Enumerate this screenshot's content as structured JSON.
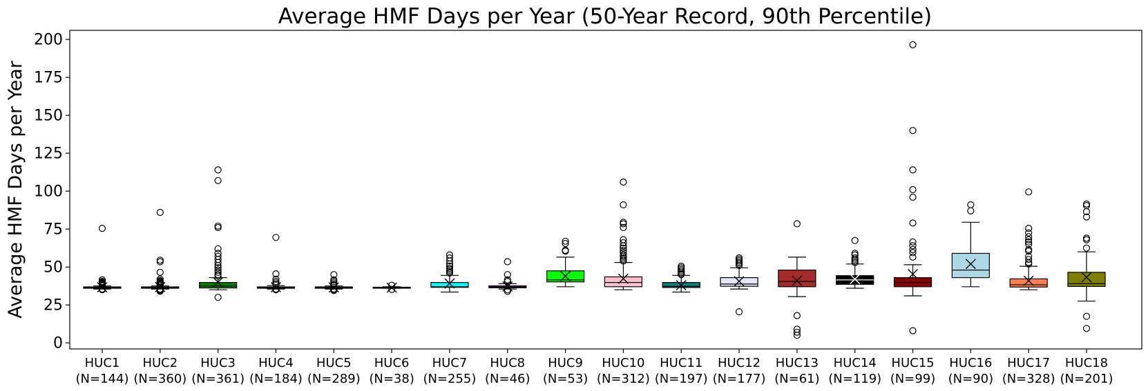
{
  "chart_data": {
    "type": "box",
    "title": "Average HMF Days per Year (50-Year Record, 90th Percentile)",
    "xlabel": "",
    "ylabel": "Average HMF Days per Year",
    "ylim": [
      -4,
      206
    ],
    "yticks": [
      0,
      25,
      50,
      75,
      100,
      125,
      150,
      175,
      200
    ],
    "grid": false,
    "categories": [
      {
        "name": "HUC1",
        "n_label": "(N=144)",
        "color": "#ffffff",
        "whislo": 35.5,
        "q1": 36.0,
        "med": 36.4,
        "q3": 36.9,
        "whishi": 37.5,
        "mean": 36.6,
        "fliers": [
          75.5,
          41.5,
          40.5,
          40,
          39.5,
          39,
          38.5,
          38,
          35.5,
          35
        ]
      },
      {
        "name": "HUC2",
        "n_label": "(N=360)",
        "color": "#ffffff",
        "whislo": 35.5,
        "q1": 36.0,
        "med": 36.4,
        "q3": 36.9,
        "whishi": 37.5,
        "mean": 36.8,
        "fliers": [
          86,
          54.5,
          53.5,
          46.5,
          42,
          41,
          40.5,
          40,
          39.5,
          39,
          38.5,
          38,
          35.5,
          35,
          34.5,
          34
        ]
      },
      {
        "name": "HUC3",
        "n_label": "(N=361)",
        "color": "#008000",
        "whislo": 35.0,
        "q1": 36.2,
        "med": 37.5,
        "q3": 39.8,
        "whishi": 43.0,
        "mean": 40.0,
        "fliers": [
          114,
          107,
          77,
          76,
          62,
          59,
          57,
          55,
          53,
          51,
          49.5,
          48,
          46.5,
          45,
          44,
          30
        ]
      },
      {
        "name": "HUC4",
        "n_label": "(N=184)",
        "color": "#ffffff",
        "whislo": 35.5,
        "q1": 36.0,
        "med": 36.4,
        "q3": 36.9,
        "whishi": 37.8,
        "mean": 36.7,
        "fliers": [
          69.5,
          45.5,
          42,
          40.5,
          39.5,
          38.5,
          35.5,
          35
        ]
      },
      {
        "name": "HUC5",
        "n_label": "(N=289)",
        "color": "#ffffff",
        "whislo": 35.5,
        "q1": 36.0,
        "med": 36.4,
        "q3": 36.9,
        "whishi": 37.5,
        "mean": 36.5,
        "fliers": [
          45,
          41.5,
          40.5,
          39.5,
          38.5,
          38,
          35.5,
          35,
          34.5
        ]
      },
      {
        "name": "HUC6",
        "n_label": "(N=38)",
        "color": "#ffffff",
        "whislo": 36.0,
        "q1": 36.2,
        "med": 36.4,
        "q3": 36.7,
        "whishi": 37.0,
        "mean": 36.4,
        "fliers": [
          38,
          35.2
        ]
      },
      {
        "name": "HUC7",
        "n_label": "(N=255)",
        "color": "#00ffff",
        "whislo": 33.5,
        "q1": 36.6,
        "med": 37.0,
        "q3": 39.8,
        "whishi": 44.5,
        "mean": 39.2,
        "fliers": [
          58,
          56,
          54,
          52,
          50.5,
          49,
          48,
          47,
          46
        ]
      },
      {
        "name": "HUC8",
        "n_label": "(N=46)",
        "color": "#800080",
        "whislo": 35.5,
        "q1": 36.3,
        "med": 36.8,
        "q3": 37.6,
        "whishi": 39.0,
        "mean": 37.2,
        "fliers": [
          53.5,
          45,
          41.5,
          40.5,
          35,
          34
        ]
      },
      {
        "name": "HUC9",
        "n_label": "(N=53)",
        "color": "#00ff00",
        "whislo": 37.0,
        "q1": 40.2,
        "med": 41.5,
        "q3": 47.5,
        "whishi": 56.5,
        "mean": 44.0,
        "fliers": [
          67,
          65.5,
          61,
          60.5
        ]
      },
      {
        "name": "HUC10",
        "n_label": "(N=312)",
        "color": "#ffc0cb",
        "whislo": 35.0,
        "q1": 37.0,
        "med": 39.8,
        "q3": 43.5,
        "whishi": 53.0,
        "mean": 42.3,
        "fliers": [
          106,
          91,
          79.5,
          78.5,
          76,
          68,
          66,
          64,
          62.5,
          61,
          59.5,
          58,
          57,
          56,
          55,
          54
        ]
      },
      {
        "name": "HUC11",
        "n_label": "(N=197)",
        "color": "#008080",
        "whislo": 33.5,
        "q1": 36.5,
        "med": 37.2,
        "q3": 39.8,
        "whishi": 44.5,
        "mean": 38.0,
        "fliers": [
          50.5,
          49.5,
          48.5,
          47.5,
          46.5,
          45.5,
          45
        ]
      },
      {
        "name": "HUC12",
        "n_label": "(N=177)",
        "color": "#e6e6fa",
        "whislo": 35.5,
        "q1": 37.3,
        "med": 38.8,
        "q3": 43.0,
        "whishi": 49.5,
        "mean": 40.6,
        "fliers": [
          56,
          55,
          54,
          53,
          52,
          51,
          20.5
        ]
      },
      {
        "name": "HUC13",
        "n_label": "(N=61)",
        "color": "#a52a2a",
        "whislo": 30.5,
        "q1": 37.0,
        "med": 40.5,
        "q3": 48.0,
        "whishi": 56.5,
        "mean": 41.0,
        "fliers": [
          78.5,
          18,
          9,
          7,
          5
        ]
      },
      {
        "name": "HUC14",
        "n_label": "(N=119)",
        "color": "#000000",
        "whislo": 36.0,
        "q1": 38.6,
        "med": 41.5,
        "q3": 44.3,
        "whishi": 52.0,
        "mean": 42.0,
        "fliers": [
          67.5,
          59,
          58,
          56,
          55,
          54,
          53
        ]
      },
      {
        "name": "HUC15",
        "n_label": "(N=99)",
        "color": "#8b0000",
        "whislo": 31.0,
        "q1": 37.0,
        "med": 39.8,
        "q3": 43.0,
        "whishi": 51.5,
        "mean": 45.3,
        "fliers": [
          196.5,
          140,
          114,
          101,
          96,
          79,
          66.5,
          64,
          61.5,
          59.5,
          56.5,
          8
        ]
      },
      {
        "name": "HUC16",
        "n_label": "(N=90)",
        "color": "#add8e6",
        "whislo": 37.0,
        "q1": 43.0,
        "med": 48.0,
        "q3": 59.0,
        "whishi": 79.5,
        "mean": 52.0,
        "fliers": [
          91,
          87
        ]
      },
      {
        "name": "HUC17",
        "n_label": "(N=328)",
        "color": "#ff7f50",
        "whislo": 35.0,
        "q1": 36.8,
        "med": 38.3,
        "q3": 42.2,
        "whishi": 50.5,
        "mean": 41.0,
        "fliers": [
          99.5,
          75.5,
          72.5,
          70,
          68,
          66.5,
          65,
          61.5,
          60.5,
          57,
          55,
          53,
          52
        ]
      },
      {
        "name": "HUC18",
        "n_label": "(N=201)",
        "color": "#808000",
        "whislo": 27.5,
        "q1": 37.2,
        "med": 39.0,
        "q3": 46.5,
        "whishi": 60.0,
        "mean": 43.2,
        "fliers": [
          91.5,
          90.5,
          86.5,
          83,
          69,
          68,
          62.5,
          17.5,
          9.5
        ]
      }
    ]
  }
}
